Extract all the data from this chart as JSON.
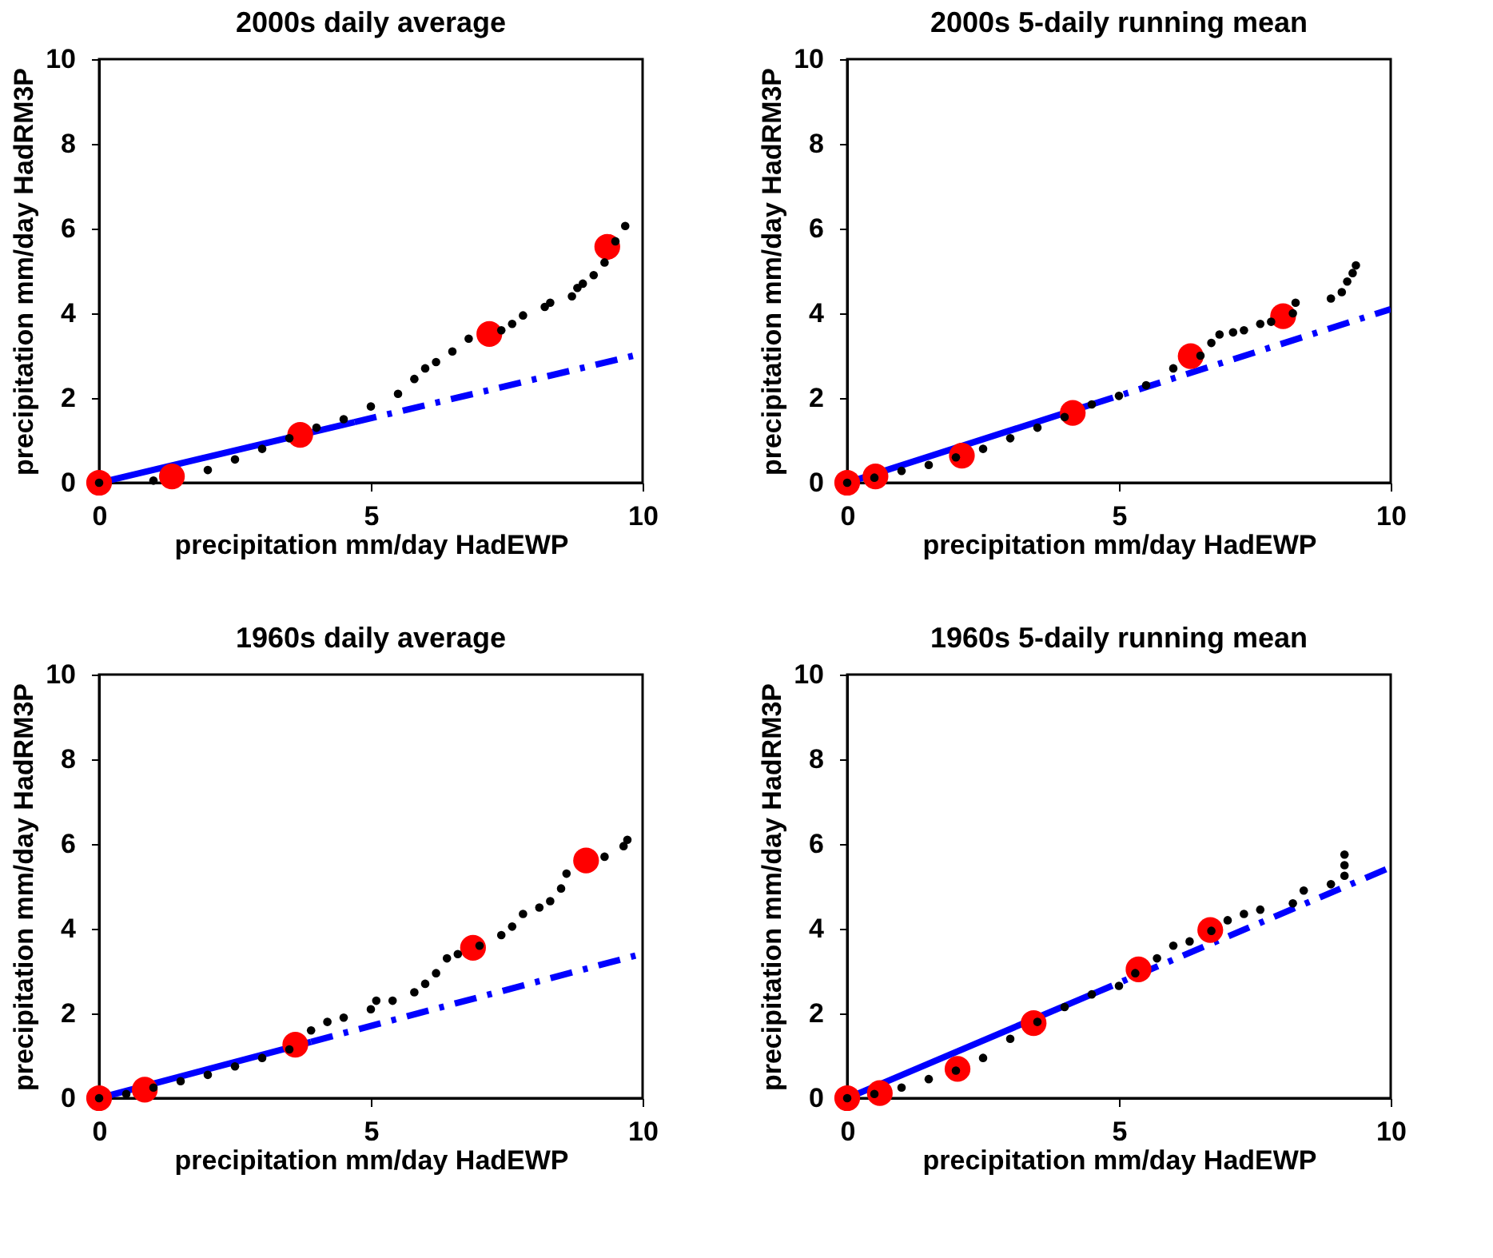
{
  "chart_data": [
    {
      "type": "scatter",
      "title": "2000s daily average",
      "xlabel": "precipitation mm/day HadEWP",
      "ylabel": "precipitation mm/day HadRM3P",
      "xlim": [
        0,
        10
      ],
      "ylim": [
        0,
        10
      ],
      "xticks": [
        0,
        5,
        10
      ],
      "yticks": [
        0,
        2,
        4,
        6,
        8,
        10
      ],
      "series": [
        {
          "type": "line",
          "color": "#0000ff",
          "line_style": "solid",
          "marker": "none",
          "x": [
            0,
            4.7
          ],
          "values": [
            0,
            1.43
          ]
        },
        {
          "type": "line",
          "color": "#0000ff",
          "line_style": "dashed",
          "marker": "none",
          "x": [
            4.7,
            10
          ],
          "values": [
            1.43,
            3.05
          ]
        },
        {
          "type": "scatter",
          "color": "#ff0000",
          "marker": "circle",
          "x": [
            0,
            1.34,
            3.7,
            7.18,
            9.35
          ],
          "values": [
            0,
            0.15,
            1.13,
            3.51,
            5.57
          ]
        },
        {
          "type": "scatter",
          "color": "#000000",
          "marker": "circle",
          "x": [
            0,
            1,
            2,
            2.5,
            3,
            3.5,
            4,
            4.5,
            5,
            5.5,
            5.8,
            6,
            6.2,
            6.5,
            6.8,
            7.4,
            7.6,
            7.8,
            8.2,
            8.3,
            8.7,
            8.8,
            8.9,
            9.1,
            9.3,
            9.5,
            9.68
          ],
          "values": [
            0,
            0.05,
            0.3,
            0.55,
            0.8,
            1.05,
            1.3,
            1.5,
            1.8,
            2.1,
            2.45,
            2.7,
            2.85,
            3.1,
            3.4,
            3.6,
            3.75,
            3.95,
            4.15,
            4.25,
            4.4,
            4.6,
            4.7,
            4.9,
            5.2,
            5.7,
            6.06
          ]
        }
      ]
    },
    {
      "type": "scatter",
      "title": "2000s 5-daily running mean",
      "xlabel": "precipitation mm/day HadEWP",
      "ylabel": "precipitation mm/day HadRM3P",
      "xlim": [
        0,
        10
      ],
      "ylim": [
        0,
        10
      ],
      "xticks": [
        0,
        5,
        10
      ],
      "yticks": [
        0,
        2,
        4,
        6,
        8,
        10
      ],
      "series": [
        {
          "type": "line",
          "color": "#0000ff",
          "line_style": "solid",
          "marker": "none",
          "x": [
            0,
            4.5
          ],
          "values": [
            0,
            1.85
          ]
        },
        {
          "type": "line",
          "color": "#0000ff",
          "line_style": "dashed",
          "marker": "none",
          "x": [
            4.5,
            10
          ],
          "values": [
            1.85,
            4.1
          ]
        },
        {
          "type": "scatter",
          "color": "#ff0000",
          "marker": "circle",
          "x": [
            0,
            0.52,
            2.11,
            4.15,
            6.32,
            8.02
          ],
          "values": [
            0,
            0.15,
            0.64,
            1.65,
            2.99,
            3.93
          ]
        },
        {
          "type": "scatter",
          "color": "#000000",
          "marker": "circle",
          "x": [
            0,
            0.5,
            1,
            1.5,
            2,
            2.5,
            3,
            3.5,
            4,
            4.5,
            5,
            5.5,
            6,
            6.5,
            6.7,
            6.85,
            7.1,
            7.3,
            7.6,
            7.8,
            8.2,
            8.25,
            8.9,
            9.1,
            9.2,
            9.3,
            9.36
          ],
          "values": [
            0,
            0.12,
            0.28,
            0.42,
            0.6,
            0.8,
            1.05,
            1.3,
            1.55,
            1.85,
            2.05,
            2.3,
            2.7,
            3.0,
            3.3,
            3.5,
            3.55,
            3.6,
            3.75,
            3.8,
            4.0,
            4.25,
            4.35,
            4.5,
            4.75,
            4.95,
            5.13
          ]
        }
      ]
    },
    {
      "type": "scatter",
      "title": "1960s daily average",
      "xlabel": "precipitation mm/day HadEWP",
      "ylabel": "precipitation mm/day HadRM3P",
      "xlim": [
        0,
        10
      ],
      "ylim": [
        0,
        10
      ],
      "xticks": [
        0,
        5,
        10
      ],
      "yticks": [
        0,
        2,
        4,
        6,
        8,
        10
      ],
      "series": [
        {
          "type": "line",
          "color": "#0000ff",
          "line_style": "solid",
          "marker": "none",
          "x": [
            0,
            3.9
          ],
          "values": [
            0,
            1.33
          ]
        },
        {
          "type": "line",
          "color": "#0000ff",
          "line_style": "dashed",
          "marker": "none",
          "x": [
            3.9,
            10
          ],
          "values": [
            1.33,
            3.41
          ]
        },
        {
          "type": "scatter",
          "color": "#ff0000",
          "marker": "circle",
          "x": [
            0,
            0.84,
            3.61,
            6.88,
            8.96
          ],
          "values": [
            0,
            0.2,
            1.26,
            3.55,
            5.61
          ]
        },
        {
          "type": "scatter",
          "color": "#000000",
          "marker": "circle",
          "x": [
            0,
            0.5,
            1,
            1.5,
            2,
            2.5,
            3,
            3.5,
            3.9,
            4.2,
            4.5,
            5,
            5.1,
            5.4,
            5.8,
            6,
            6.2,
            6.4,
            6.6,
            7,
            7.4,
            7.6,
            7.8,
            8.1,
            8.3,
            8.5,
            8.6,
            9.3,
            9.65,
            9.72
          ],
          "values": [
            0,
            0.1,
            0.25,
            0.4,
            0.55,
            0.75,
            0.95,
            1.15,
            1.6,
            1.8,
            1.9,
            2.1,
            2.3,
            2.3,
            2.5,
            2.7,
            2.95,
            3.3,
            3.4,
            3.6,
            3.85,
            4.05,
            4.35,
            4.5,
            4.65,
            4.95,
            5.3,
            5.7,
            5.95,
            6.1
          ]
        }
      ]
    },
    {
      "type": "scatter",
      "title": "1960s 5-daily running mean",
      "xlabel": "precipitation mm/day HadEWP",
      "ylabel": "precipitation mm/day HadRM3P",
      "xlim": [
        0,
        10
      ],
      "ylim": [
        0,
        10
      ],
      "xticks": [
        0,
        5,
        10
      ],
      "yticks": [
        0,
        2,
        4,
        6,
        8,
        10
      ],
      "series": [
        {
          "type": "line",
          "color": "#0000ff",
          "line_style": "solid",
          "marker": "none",
          "x": [
            0,
            4.5
          ],
          "values": [
            0,
            2.45
          ]
        },
        {
          "type": "line",
          "color": "#0000ff",
          "line_style": "dashed",
          "marker": "none",
          "x": [
            4.5,
            10
          ],
          "values": [
            2.45,
            5.45
          ]
        },
        {
          "type": "scatter",
          "color": "#ff0000",
          "marker": "circle",
          "x": [
            0,
            0.6,
            2.03,
            3.43,
            5.36,
            6.68
          ],
          "values": [
            0,
            0.12,
            0.69,
            1.77,
            3.04,
            3.97
          ]
        },
        {
          "type": "scatter",
          "color": "#000000",
          "marker": "circle",
          "x": [
            0,
            0.5,
            1,
            1.5,
            2,
            2.5,
            3,
            3.5,
            4,
            4.5,
            5,
            5.3,
            5.7,
            6.0,
            6.3,
            6.7,
            7.0,
            7.3,
            7.6,
            8.2,
            8.4,
            8.9,
            9.15,
            9.15,
            9.15
          ],
          "values": [
            0,
            0.1,
            0.25,
            0.45,
            0.65,
            0.95,
            1.4,
            1.8,
            2.15,
            2.45,
            2.65,
            2.95,
            3.3,
            3.6,
            3.7,
            3.95,
            4.2,
            4.35,
            4.45,
            4.6,
            4.9,
            5.05,
            5.25,
            5.5,
            5.75
          ]
        }
      ]
    }
  ]
}
